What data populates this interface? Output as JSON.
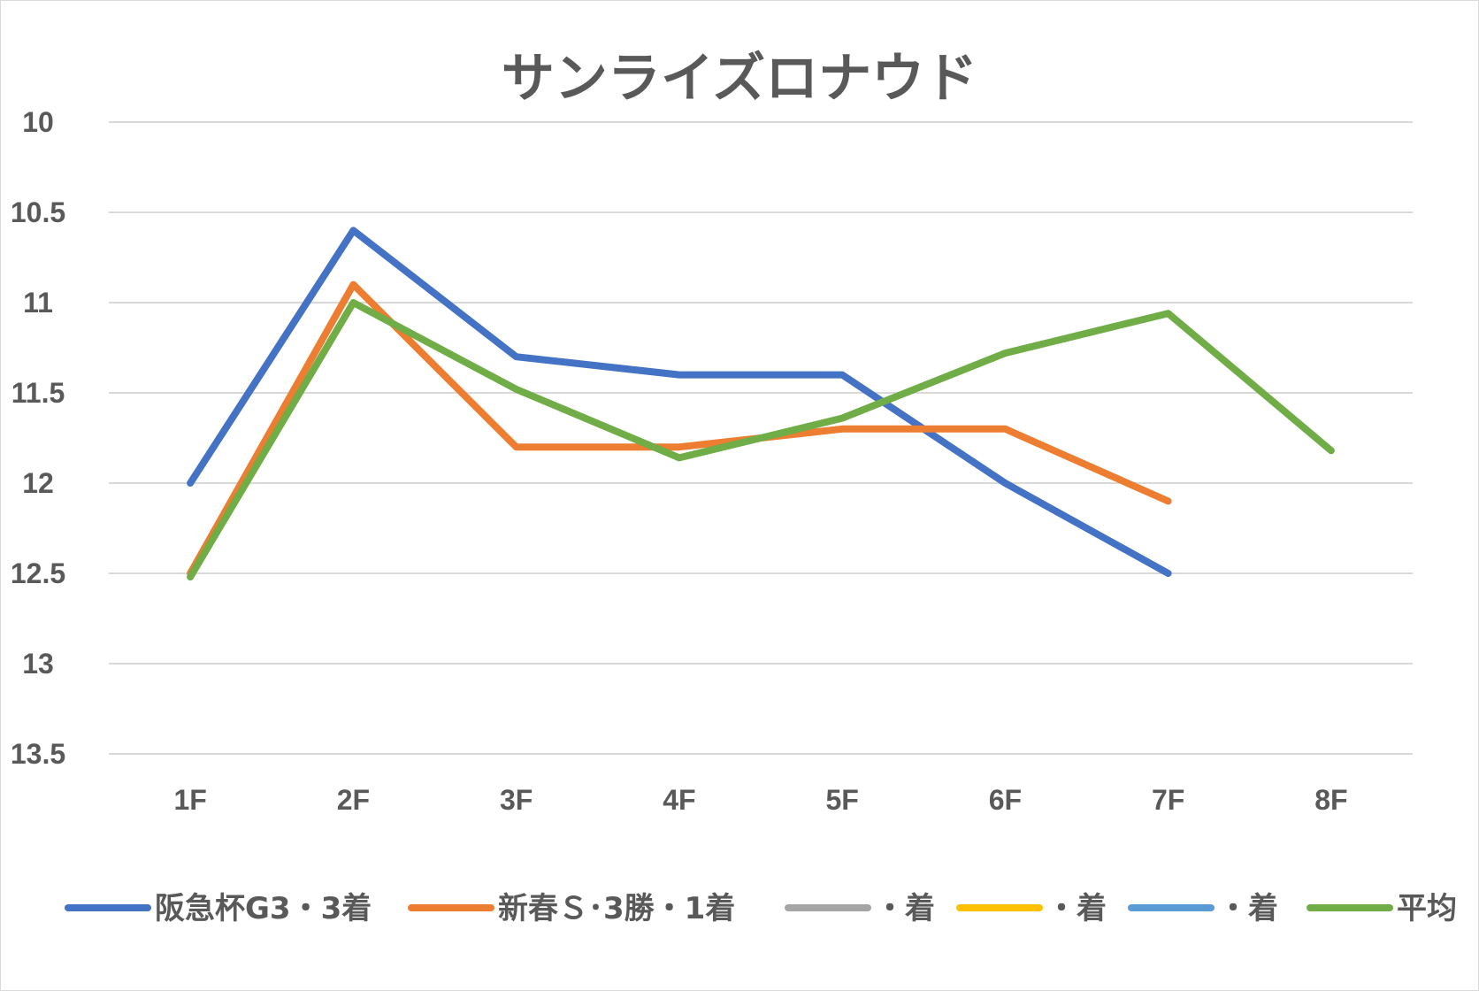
{
  "chart_data": {
    "type": "line",
    "title": "サンライズロナウド",
    "categories": [
      "1F",
      "2F",
      "3F",
      "4F",
      "5F",
      "6F",
      "7F",
      "8F"
    ],
    "y_axis": {
      "reversed": true,
      "min": 10,
      "max": 13.5,
      "tick_labels": [
        "10",
        "10.5",
        "11",
        "11.5",
        "12",
        "12.5",
        "13",
        "13.5"
      ],
      "gridlines": true
    },
    "legend_position": "bottom",
    "series": [
      {
        "name": "阪急杯G3・3着",
        "color": "#4472c4",
        "values": [
          12.0,
          10.6,
          11.3,
          11.4,
          11.4,
          12.0,
          12.5,
          null
        ]
      },
      {
        "name": "新春Ｓ･3勝・1着",
        "color": "#ed7d31",
        "values": [
          12.5,
          10.9,
          11.8,
          11.8,
          11.7,
          11.7,
          12.1,
          null
        ]
      },
      {
        "name": "・着",
        "color": "#a5a5a5",
        "values": [
          null,
          null,
          null,
          null,
          null,
          null,
          null,
          null
        ]
      },
      {
        "name": "・着",
        "color": "#ffc000",
        "values": [
          null,
          null,
          null,
          null,
          null,
          null,
          null,
          null
        ]
      },
      {
        "name": "・着",
        "color": "#5b9bd5",
        "values": [
          null,
          null,
          null,
          null,
          null,
          null,
          null,
          null
        ]
      },
      {
        "name": "平均",
        "color": "#70ad47",
        "values": [
          12.52,
          11.0,
          11.48,
          11.86,
          11.64,
          11.28,
          11.06,
          11.82
        ]
      }
    ]
  }
}
